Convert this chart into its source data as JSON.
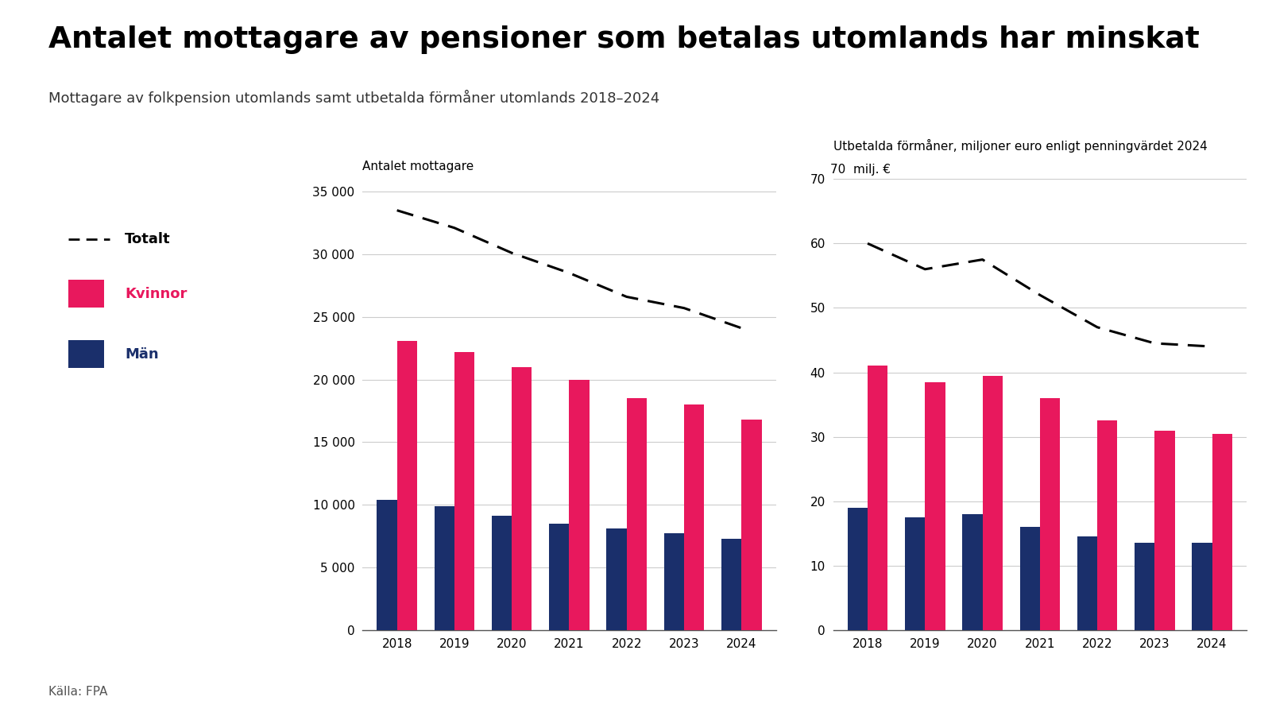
{
  "title": "Antalet mottagare av pensioner som betalas utomlands har minskat",
  "subtitle": "Mottagare av folkpension utomlands samt utbetalda förmåner utomlands 2018–2024",
  "source": "Källa: FPA",
  "years": [
    2018,
    2019,
    2020,
    2021,
    2022,
    2023,
    2024
  ],
  "left_ylabel": "Antalet mottagare",
  "left_ylim": [
    0,
    36000
  ],
  "left_yticks": [
    0,
    5000,
    10000,
    15000,
    20000,
    25000,
    30000,
    35000
  ],
  "left_ytick_labels": [
    "0",
    "5 000",
    "10 000",
    "15 000",
    "20 000",
    "25 000",
    "30 000",
    "35 000"
  ],
  "kvinnor_counts": [
    23100,
    22200,
    21000,
    20000,
    18500,
    18000,
    16800
  ],
  "man_counts": [
    10400,
    9900,
    9100,
    8500,
    8100,
    7700,
    7300
  ],
  "total_counts": [
    33500,
    32100,
    30100,
    28500,
    26600,
    25700,
    24100
  ],
  "right_ylabel": "Utbetalda förmåner, miljoner euro enligt penningvärdet 2024",
  "right_unit": "70  milj. €",
  "right_ylim": [
    0,
    70
  ],
  "right_yticks": [
    0,
    10,
    20,
    30,
    40,
    50,
    60,
    70
  ],
  "right_ytick_labels": [
    "0",
    "10",
    "20",
    "30",
    "40",
    "50",
    "60",
    "70"
  ],
  "kvinnor_eur": [
    41.0,
    38.5,
    39.5,
    36.0,
    32.5,
    31.0,
    30.5
  ],
  "man_eur": [
    19.0,
    17.5,
    18.0,
    16.0,
    14.5,
    13.5,
    13.5
  ],
  "total_eur": [
    60.0,
    56.0,
    57.5,
    52.0,
    47.0,
    44.5,
    44.0
  ],
  "color_kvinnor": "#e8185d",
  "color_man": "#1a2f6b",
  "color_dashed": "#000000",
  "background": "#ffffff",
  "legend_totalt": "Totalt",
  "legend_kvinnor": "Kvinnor",
  "legend_man": "Män"
}
